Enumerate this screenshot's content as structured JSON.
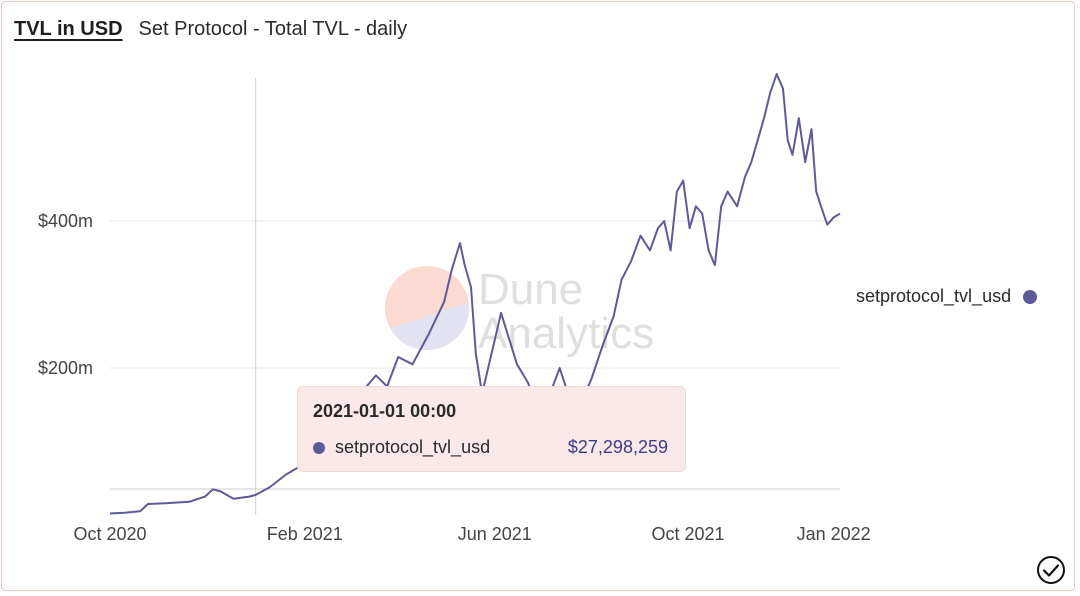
{
  "header": {
    "tab_title": "TVL in USD",
    "subtitle": "Set Protocol - Total TVL - daily"
  },
  "legend": {
    "series_label": "setprotocol_tvl_usd"
  },
  "tooltip": {
    "date": "2021-01-01 00:00",
    "series": "setprotocol_tvl_usd",
    "value": "$27,298,259"
  },
  "watermark": {
    "line1": "Dune",
    "line2": "Analytics"
  },
  "colors": {
    "line": "#5d5a9c",
    "tooltip_bg": "#fbe8e8",
    "grid": "#e6e6e6"
  },
  "icons": {
    "status": "check-circle-icon"
  },
  "chart_data": {
    "type": "line",
    "title": "Set Protocol - Total TVL - daily",
    "x_axis": {
      "ticks": [
        "2020-10-01",
        "2021-02-01",
        "2021-06-01",
        "2021-10-01",
        "2022-01-01"
      ],
      "tick_labels": [
        "Oct 2020",
        "Feb 2021",
        "Jun 2021",
        "Oct 2021",
        "Jan 2022"
      ],
      "range": [
        "2020-10-01",
        "2022-01-05"
      ]
    },
    "y_axis": {
      "ticks": [
        200000000,
        400000000
      ],
      "tick_labels": [
        "$200m",
        "$400m"
      ],
      "range": [
        0,
        600000000
      ]
    },
    "legend_position": "right",
    "grid": true,
    "hover_date": "2021-01-01",
    "series": [
      {
        "name": "setprotocol_tvl_usd",
        "points": [
          [
            "2020-10-01",
            2000000
          ],
          [
            "2020-10-10",
            3000000
          ],
          [
            "2020-10-20",
            5000000
          ],
          [
            "2020-10-25",
            15000000
          ],
          [
            "2020-11-05",
            16000000
          ],
          [
            "2020-11-20",
            18000000
          ],
          [
            "2020-11-30",
            25000000
          ],
          [
            "2020-12-05",
            35000000
          ],
          [
            "2020-12-10",
            32000000
          ],
          [
            "2020-12-18",
            22000000
          ],
          [
            "2020-12-28",
            25000000
          ],
          [
            "2021-01-01",
            27298259
          ],
          [
            "2021-01-10",
            38000000
          ],
          [
            "2021-01-20",
            55000000
          ],
          [
            "2021-02-01",
            70000000
          ],
          [
            "2021-02-10",
            95000000
          ],
          [
            "2021-02-20",
            120000000
          ],
          [
            "2021-03-01",
            145000000
          ],
          [
            "2021-03-10",
            170000000
          ],
          [
            "2021-03-18",
            190000000
          ],
          [
            "2021-03-25",
            175000000
          ],
          [
            "2021-04-01",
            215000000
          ],
          [
            "2021-04-10",
            205000000
          ],
          [
            "2021-04-20",
            245000000
          ],
          [
            "2021-04-30",
            290000000
          ],
          [
            "2021-05-05",
            335000000
          ],
          [
            "2021-05-10",
            370000000
          ],
          [
            "2021-05-13",
            340000000
          ],
          [
            "2021-05-17",
            310000000
          ],
          [
            "2021-05-20",
            220000000
          ],
          [
            "2021-05-24",
            165000000
          ],
          [
            "2021-05-30",
            220000000
          ],
          [
            "2021-06-05",
            275000000
          ],
          [
            "2021-06-10",
            240000000
          ],
          [
            "2021-06-15",
            205000000
          ],
          [
            "2021-06-22",
            180000000
          ],
          [
            "2021-06-28",
            145000000
          ],
          [
            "2021-07-05",
            160000000
          ],
          [
            "2021-07-12",
            200000000
          ],
          [
            "2021-07-18",
            160000000
          ],
          [
            "2021-07-25",
            150000000
          ],
          [
            "2021-08-01",
            185000000
          ],
          [
            "2021-08-08",
            230000000
          ],
          [
            "2021-08-15",
            270000000
          ],
          [
            "2021-08-20",
            320000000
          ],
          [
            "2021-08-26",
            345000000
          ],
          [
            "2021-09-01",
            380000000
          ],
          [
            "2021-09-07",
            360000000
          ],
          [
            "2021-09-12",
            390000000
          ],
          [
            "2021-09-16",
            400000000
          ],
          [
            "2021-09-20",
            360000000
          ],
          [
            "2021-09-24",
            440000000
          ],
          [
            "2021-09-28",
            455000000
          ],
          [
            "2021-10-02",
            390000000
          ],
          [
            "2021-10-06",
            420000000
          ],
          [
            "2021-10-10",
            410000000
          ],
          [
            "2021-10-14",
            360000000
          ],
          [
            "2021-10-18",
            340000000
          ],
          [
            "2021-10-22",
            420000000
          ],
          [
            "2021-10-26",
            440000000
          ],
          [
            "2021-11-01",
            420000000
          ],
          [
            "2021-11-06",
            460000000
          ],
          [
            "2021-11-10",
            480000000
          ],
          [
            "2021-11-14",
            510000000
          ],
          [
            "2021-11-18",
            540000000
          ],
          [
            "2021-11-22",
            575000000
          ],
          [
            "2021-11-26",
            600000000
          ],
          [
            "2021-11-30",
            580000000
          ],
          [
            "2021-12-03",
            510000000
          ],
          [
            "2021-12-06",
            490000000
          ],
          [
            "2021-12-10",
            540000000
          ],
          [
            "2021-12-14",
            480000000
          ],
          [
            "2021-12-18",
            525000000
          ],
          [
            "2021-12-21",
            440000000
          ],
          [
            "2021-12-24",
            420000000
          ],
          [
            "2021-12-28",
            395000000
          ],
          [
            "2022-01-01",
            405000000
          ],
          [
            "2022-01-05",
            410000000
          ]
        ]
      }
    ]
  }
}
